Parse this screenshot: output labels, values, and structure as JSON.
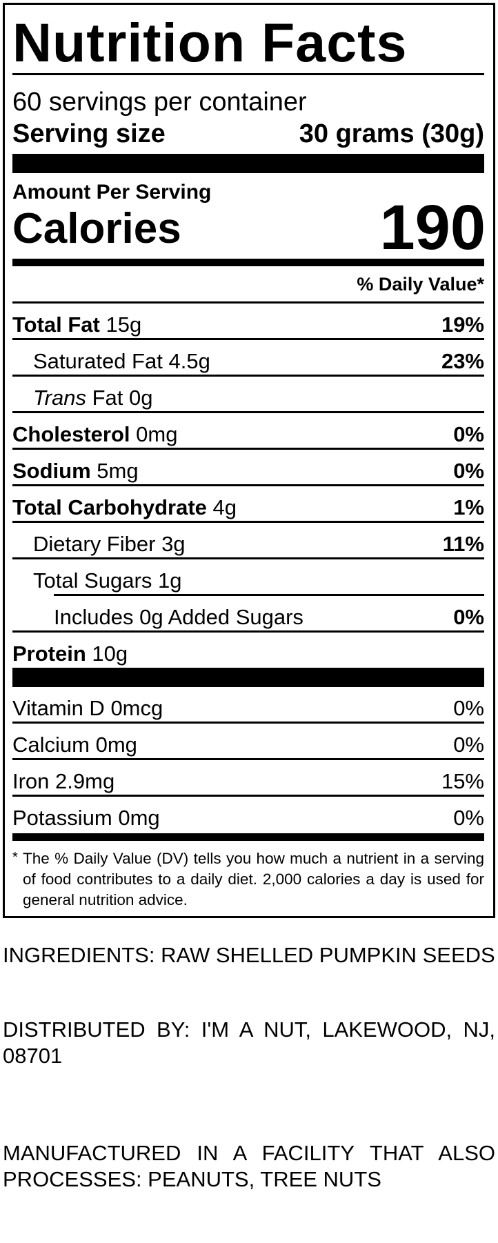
{
  "label": {
    "title": "Nutrition Facts",
    "servings_per_container": "60 servings per container",
    "serving_size_label": "Serving size",
    "serving_size_value": "30 grams (30g)",
    "amount_per_serving": "Amount Per Serving",
    "calories_label": "Calories",
    "calories_value": "190",
    "daily_value_header": "% Daily Value*",
    "nutrients": [
      {
        "name": "Total Fat",
        "amount": "15g",
        "dv": "19%",
        "bold": true,
        "indent": 0
      },
      {
        "name": "Saturated Fat",
        "amount": "4.5g",
        "dv": "23%",
        "bold": false,
        "indent": 1
      },
      {
        "name": "Trans",
        "suffix": "Fat",
        "amount": "0g",
        "dv": "",
        "bold": false,
        "indent": 1
      },
      {
        "name": "Cholesterol",
        "amount": "0mg",
        "dv": "0%",
        "bold": true,
        "indent": 0
      },
      {
        "name": "Sodium",
        "amount": "5mg",
        "dv": "0%",
        "bold": true,
        "indent": 0
      },
      {
        "name": "Total Carbohydrate",
        "amount": "4g",
        "dv": "1%",
        "bold": true,
        "indent": 0
      },
      {
        "name": "Dietary Fiber",
        "amount": "3g",
        "dv": "11%",
        "bold": false,
        "indent": 1
      },
      {
        "name": "Total Sugars",
        "amount": "1g",
        "dv": "",
        "bold": false,
        "indent": 1
      },
      {
        "name": "Includes 0g Added Sugars",
        "amount": "",
        "dv": "0%",
        "bold": false,
        "indent": 2
      },
      {
        "name": "Protein",
        "amount": "10g",
        "dv": "",
        "bold": true,
        "indent": 0
      }
    ],
    "vitamins": [
      {
        "name": "Vitamin D",
        "amount": "0mcg",
        "dv": "0%"
      },
      {
        "name": "Calcium",
        "amount": "0mg",
        "dv": "0%"
      },
      {
        "name": "Iron",
        "amount": "2.9mg",
        "dv": "15%"
      },
      {
        "name": "Potassium",
        "amount": "0mg",
        "dv": "0%"
      }
    ],
    "footnote_mark": "*",
    "footnote": "The % Daily Value (DV) tells you how much a nutrient in a serving of food contributes to a daily diet. 2,000 calories a day is used for general nutrition advice."
  },
  "ingredients": "INGREDIENTS: RAW SHELLED PUMPKIN SEEDS",
  "distributor": "DISTRIBUTED BY: I'M A NUT, LAKEWOOD, NJ, 08701",
  "allergen": "MANUFACTURED IN A FACILITY THAT ALSO PROCESSES: PEANUTS, TREE NUTS"
}
